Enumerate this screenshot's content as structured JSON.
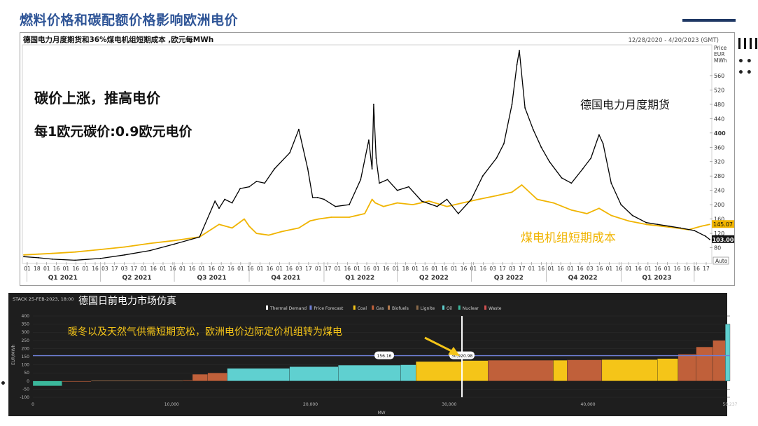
{
  "slide": {
    "title": "燃料价格和碳配额价格影响欧洲电价"
  },
  "chart_data": [
    {
      "type": "line",
      "title": "德国电力月度期货和36%煤电机组短期成本 ,欧元每MWh",
      "date_range": "12/28/2020 - 4/20/2023 (GMT)",
      "axis_unit": [
        "Price",
        "EUR",
        "MWh"
      ],
      "ylim": [
        40,
        640
      ],
      "yticks": [
        80,
        120,
        160,
        200,
        240,
        280,
        320,
        360,
        400,
        440,
        480,
        520,
        560
      ],
      "bold_ytick": 400,
      "auto_label": "Auto",
      "xlim": [
        "2020-12-28",
        "2023-04-20"
      ],
      "xticks_minor": [
        "01",
        "18",
        "01",
        "16",
        "01",
        "16",
        "01",
        "16",
        "03",
        "17",
        "03",
        "17",
        "01",
        "16",
        "01",
        "16",
        "01",
        "16",
        "01",
        "16",
        "02",
        "16",
        "01",
        "16",
        "01",
        "16",
        "01",
        "16",
        "03",
        "17",
        "01",
        "17",
        "01",
        "16",
        "01",
        "16",
        "01",
        "16",
        "01",
        "18",
        "01",
        "16",
        "01",
        "16",
        "01",
        "16",
        "01",
        "16",
        "03",
        "17",
        "03",
        "17",
        "01",
        "16",
        "01",
        "16",
        "01",
        "16",
        "03",
        "16",
        "01",
        "16",
        "01",
        "16",
        "01",
        "16",
        "01",
        "16",
        "16",
        "16",
        "17"
      ],
      "xticks_quarters": [
        "Q1 2021",
        "Q2 2021",
        "Q3 2021",
        "Q4 2021",
        "Q1 2022",
        "Q2 2022",
        "Q3 2022",
        "Q4 2022",
        "Q1 2023"
      ],
      "annotations": {
        "left_main": "碳价上涨，推高电价",
        "left_sub": "每1欧元碳价:0.9欧元电价",
        "black_series_label": "德国电力月度期货",
        "orange_series_label": "煤电机组短期成本"
      },
      "last_values": {
        "orange": "145.07",
        "black": "103.00"
      },
      "series": [
        {
          "name": "德国电力月度期货",
          "color": "#000000",
          "x": [
            "2020-12-28",
            "2021-01-15",
            "2021-02-01",
            "2021-03-01",
            "2021-04-01",
            "2021-05-01",
            "2021-06-01",
            "2021-07-01",
            "2021-08-01",
            "2021-08-20",
            "2021-08-25",
            "2021-09-01",
            "2021-09-10",
            "2021-09-20",
            "2021-10-01",
            "2021-10-10",
            "2021-10-20",
            "2021-11-01",
            "2021-11-20",
            "2021-12-01",
            "2021-12-12",
            "2021-12-18",
            "2021-12-24",
            "2022-01-01",
            "2022-01-15",
            "2022-02-01",
            "2022-02-15",
            "2022-02-25",
            "2022-03-01",
            "2022-03-03",
            "2022-03-06",
            "2022-03-10",
            "2022-03-20",
            "2022-04-01",
            "2022-04-15",
            "2022-05-01",
            "2022-05-20",
            "2022-06-01",
            "2022-06-15",
            "2022-07-01",
            "2022-07-15",
            "2022-08-01",
            "2022-08-10",
            "2022-08-20",
            "2022-08-26",
            "2022-08-29",
            "2022-09-05",
            "2022-09-15",
            "2022-09-25",
            "2022-10-05",
            "2022-10-20",
            "2022-11-01",
            "2022-11-15",
            "2022-11-25",
            "2022-12-05",
            "2022-12-10",
            "2022-12-20",
            "2023-01-01",
            "2023-01-15",
            "2023-02-01",
            "2023-02-15",
            "2023-03-01",
            "2023-03-15",
            "2023-04-01",
            "2023-04-15",
            "2023-04-20"
          ],
          "values": [
            55,
            52,
            48,
            45,
            50,
            60,
            72,
            90,
            110,
            210,
            190,
            215,
            205,
            245,
            250,
            265,
            260,
            300,
            345,
            410,
            300,
            220,
            220,
            215,
            195,
            200,
            270,
            380,
            300,
            480,
            330,
            260,
            270,
            240,
            250,
            210,
            195,
            215,
            175,
            215,
            280,
            330,
            370,
            480,
            590,
            630,
            470,
            410,
            360,
            320,
            275,
            260,
            300,
            330,
            395,
            370,
            260,
            200,
            170,
            150,
            145,
            140,
            135,
            128,
            112,
            103
          ]
        },
        {
          "name": "煤电机组短期成本",
          "color": "#f0b400",
          "x": [
            "2020-12-28",
            "2021-01-15",
            "2021-02-01",
            "2021-03-01",
            "2021-04-01",
            "2021-05-01",
            "2021-06-01",
            "2021-07-01",
            "2021-08-01",
            "2021-08-25",
            "2021-09-10",
            "2021-09-25",
            "2021-10-01",
            "2021-10-10",
            "2021-10-25",
            "2021-11-10",
            "2021-12-01",
            "2021-12-15",
            "2021-12-25",
            "2022-01-10",
            "2022-02-01",
            "2022-02-20",
            "2022-03-01",
            "2022-03-05",
            "2022-03-15",
            "2022-04-01",
            "2022-04-20",
            "2022-05-10",
            "2022-06-01",
            "2022-06-20",
            "2022-07-10",
            "2022-08-01",
            "2022-08-20",
            "2022-09-01",
            "2022-09-20",
            "2022-10-10",
            "2022-11-01",
            "2022-11-20",
            "2022-12-05",
            "2022-12-20",
            "2023-01-10",
            "2023-02-01",
            "2023-02-20",
            "2023-03-10",
            "2023-03-25",
            "2023-04-10",
            "2023-04-20"
          ],
          "values": [
            60,
            62,
            64,
            68,
            75,
            82,
            92,
            100,
            110,
            145,
            135,
            160,
            140,
            120,
            115,
            125,
            135,
            155,
            160,
            165,
            165,
            175,
            215,
            205,
            195,
            205,
            200,
            210,
            195,
            205,
            215,
            225,
            235,
            255,
            215,
            205,
            185,
            175,
            190,
            170,
            155,
            145,
            140,
            135,
            130,
            140,
            145
          ]
        }
      ]
    },
    {
      "type": "bar",
      "subtype": "merit-order stack",
      "header": "STACK 25-FEB-2023, 18:00",
      "title": "德国日前电力市场仿真",
      "annotation": "暖冬以及天然气供需短期宽松，欧洲电价边际定价机组转为煤电",
      "xlabel": "MW",
      "ylabel": "EUR/MWh",
      "xlim": [
        0,
        50237
      ],
      "ylim": [
        -100,
        400
      ],
      "yticks": [
        -100,
        -50,
        0,
        50,
        100,
        150,
        200,
        250,
        300,
        350,
        400
      ],
      "xticks": [
        0,
        10000,
        20000,
        30000,
        40000
      ],
      "xtick_labels": [
        "0",
        "10,000",
        "20,000",
        "30,000",
        "40,000"
      ],
      "x_end_label": "50,237",
      "price_forecast": 156.16,
      "price_forecast_label": "156.16",
      "thermal_demand": 30920.98,
      "thermal_demand_label": "30,920.98",
      "legend": [
        {
          "name": "Thermal Demand",
          "color": "#ffffff"
        },
        {
          "name": "Price Forecast",
          "color": "#6f7fd6"
        },
        {
          "name": "Coal",
          "color": "#f5c518"
        },
        {
          "name": "Gas",
          "color": "#c0603a"
        },
        {
          "name": "Biofuels",
          "color": "#b07a50"
        },
        {
          "name": "Lignite",
          "color": "#8a6a4a"
        },
        {
          "name": "Oil",
          "color": "#5fd0d0"
        },
        {
          "name": "Nuclear",
          "color": "#3bb89c"
        },
        {
          "name": "Waste",
          "color": "#d05050"
        }
      ],
      "segments": [
        {
          "fuel": "Nuclear",
          "x0": 0,
          "x1": 2100,
          "value": -30
        },
        {
          "fuel": "Gas",
          "x0": 2100,
          "x1": 4200,
          "value": 0
        },
        {
          "fuel": "Biofuels",
          "x0": 4200,
          "x1": 10800,
          "value": 3
        },
        {
          "fuel": "Gas",
          "x0": 10800,
          "x1": 11500,
          "value": 5
        },
        {
          "fuel": "Gas",
          "x0": 11500,
          "x1": 12600,
          "value": 42
        },
        {
          "fuel": "Gas",
          "x0": 12600,
          "x1": 14000,
          "value": 50
        },
        {
          "fuel": "Oil",
          "x0": 14000,
          "x1": 18500,
          "value": 78
        },
        {
          "fuel": "Oil",
          "x0": 18500,
          "x1": 22000,
          "value": 88
        },
        {
          "fuel": "Oil",
          "x0": 22000,
          "x1": 26500,
          "value": 98
        },
        {
          "fuel": "Oil",
          "x0": 26500,
          "x1": 27600,
          "value": 100
        },
        {
          "fuel": "Coal",
          "x0": 27600,
          "x1": 30900,
          "value": 120
        },
        {
          "fuel": "Coal",
          "x0": 30900,
          "x1": 32800,
          "value": 126
        },
        {
          "fuel": "Gas",
          "x0": 32800,
          "x1": 37500,
          "value": 128
        },
        {
          "fuel": "Coal",
          "x0": 37500,
          "x1": 38500,
          "value": 128
        },
        {
          "fuel": "Gas",
          "x0": 38500,
          "x1": 41000,
          "value": 130
        },
        {
          "fuel": "Coal",
          "x0": 41000,
          "x1": 45000,
          "value": 132
        },
        {
          "fuel": "Coal",
          "x0": 45000,
          "x1": 46500,
          "value": 138
        },
        {
          "fuel": "Gas",
          "x0": 46500,
          "x1": 47800,
          "value": 165
        },
        {
          "fuel": "Gas",
          "x0": 47800,
          "x1": 49000,
          "value": 210
        },
        {
          "fuel": "Gas",
          "x0": 49000,
          "x1": 49900,
          "value": 250
        },
        {
          "fuel": "Oil",
          "x0": 49900,
          "x1": 50237,
          "value": 350
        }
      ]
    }
  ]
}
